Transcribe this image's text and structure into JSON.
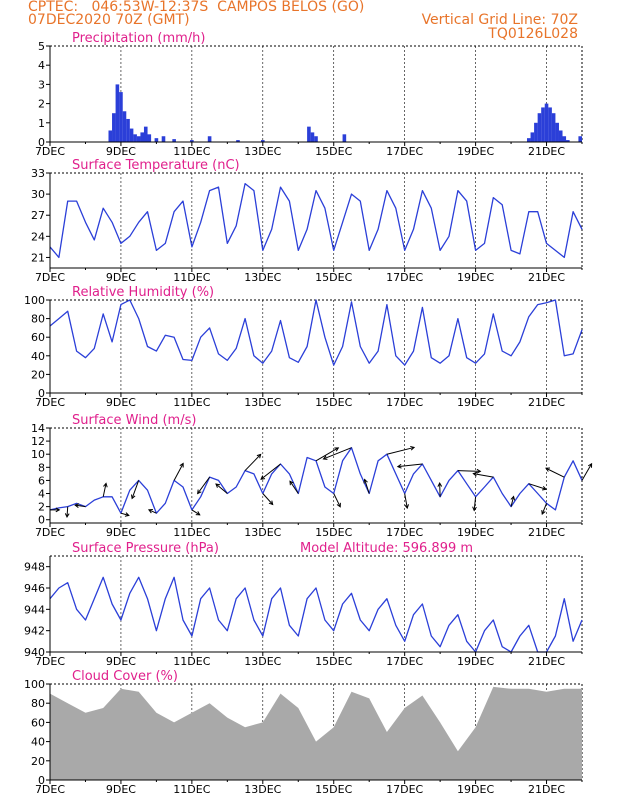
{
  "header": {
    "left_line1": "CPTEC:   046:53W-12:37S  CAMPOS BELOS (GO)",
    "left_line2": "07DEC2020 70Z (GMT)",
    "right_line1": "Vertical Grid Line: 70Z",
    "right_line2": "TQ0126L028"
  },
  "colors": {
    "header": "#e8742a",
    "title": "#e0208c",
    "series": "#2b3fd8",
    "cloud": "#a9a9a9"
  },
  "chart_data": [
    {
      "type": "bar",
      "title": "Precipitation (mm/h)",
      "x_tick_labels": [
        "7DEC",
        "9DEC",
        "11DEC",
        "13DEC",
        "15DEC",
        "17DEC",
        "19DEC",
        "21DEC"
      ],
      "y_ticks": [
        "0",
        "1",
        "2",
        "3",
        "4",
        "5"
      ],
      "ylim": [
        0,
        5
      ],
      "x": [
        1.7,
        1.8,
        1.9,
        2.0,
        2.1,
        2.2,
        2.3,
        2.4,
        2.5,
        2.6,
        2.7,
        2.8,
        3.0,
        3.2,
        3.5,
        4.0,
        4.5,
        5.3,
        6.0,
        7.3,
        7.4,
        7.5,
        8.3,
        13.5,
        13.6,
        13.7,
        13.8,
        13.9,
        14.0,
        14.1,
        14.2,
        14.3,
        14.4,
        14.5,
        14.6,
        14.95
      ],
      "values": [
        0.6,
        1.5,
        3.0,
        2.6,
        1.6,
        1.2,
        0.7,
        0.4,
        0.3,
        0.5,
        0.8,
        0.4,
        0.2,
        0.3,
        0.15,
        0.1,
        0.3,
        0.1,
        0.1,
        0.8,
        0.5,
        0.3,
        0.4,
        0.2,
        0.5,
        1.0,
        1.5,
        1.8,
        2.0,
        1.8,
        1.5,
        1.0,
        0.6,
        0.3,
        0.1,
        0.3
      ]
    },
    {
      "type": "line",
      "title": "Surface Temperature (nC)",
      "x_tick_labels": [
        "7DEC",
        "9DEC",
        "11DEC",
        "13DEC",
        "15DEC",
        "17DEC",
        "19DEC",
        "21DEC"
      ],
      "y_ticks": [
        "21",
        "24",
        "27",
        "30",
        "33"
      ],
      "ylim": [
        19.5,
        33
      ],
      "x": [
        0,
        0.25,
        0.5,
        0.75,
        1,
        1.25,
        1.5,
        1.75,
        2,
        2.25,
        2.5,
        2.75,
        3,
        3.25,
        3.5,
        3.75,
        4,
        4.25,
        4.5,
        4.75,
        5,
        5.25,
        5.5,
        5.75,
        6,
        6.25,
        6.5,
        6.75,
        7,
        7.25,
        7.5,
        7.75,
        8,
        8.25,
        8.5,
        8.75,
        9,
        9.25,
        9.5,
        9.75,
        10,
        10.25,
        10.5,
        10.75,
        11,
        11.25,
        11.5,
        11.75,
        12,
        12.25,
        12.5,
        12.75,
        13,
        13.25,
        13.5,
        13.75,
        14,
        14.25,
        14.5,
        14.75,
        15
      ],
      "values": [
        22.5,
        21,
        29,
        29,
        26,
        23.5,
        28,
        26,
        23,
        24,
        26,
        27.5,
        22,
        23,
        27.5,
        29,
        22.5,
        26,
        30.5,
        31,
        23,
        25.5,
        31.5,
        30.5,
        22,
        25,
        31,
        29,
        22,
        25,
        30.5,
        28,
        22,
        26,
        30,
        29,
        22,
        25,
        30.5,
        28,
        22,
        25,
        30.5,
        28,
        22,
        24,
        30.5,
        29,
        22,
        23,
        29.5,
        28.5,
        22,
        21.5,
        27.5,
        27.5,
        23,
        22,
        21,
        27.5,
        25
      ]
    },
    {
      "type": "line",
      "title": "Relative Humidity (%)",
      "x_tick_labels": [
        "7DEC",
        "9DEC",
        "11DEC",
        "13DEC",
        "15DEC",
        "17DEC",
        "19DEC",
        "21DEC"
      ],
      "y_ticks": [
        "0",
        "20",
        "40",
        "60",
        "80",
        "100"
      ],
      "ylim": [
        0,
        100
      ],
      "x": [
        0,
        0.25,
        0.5,
        0.75,
        1,
        1.25,
        1.5,
        1.75,
        2,
        2.25,
        2.5,
        2.75,
        3,
        3.25,
        3.5,
        3.75,
        4,
        4.25,
        4.5,
        4.75,
        5,
        5.25,
        5.5,
        5.75,
        6,
        6.25,
        6.5,
        6.75,
        7,
        7.25,
        7.5,
        7.75,
        8,
        8.25,
        8.5,
        8.75,
        9,
        9.25,
        9.5,
        9.75,
        10,
        10.25,
        10.5,
        10.75,
        11,
        11.25,
        11.5,
        11.75,
        12,
        12.25,
        12.5,
        12.75,
        13,
        13.25,
        13.5,
        13.75,
        14,
        14.25,
        14.5,
        14.75,
        15
      ],
      "values": [
        72,
        80,
        88,
        45,
        38,
        48,
        85,
        55,
        95,
        100,
        80,
        50,
        45,
        62,
        60,
        36,
        35,
        60,
        70,
        42,
        35,
        48,
        80,
        40,
        32,
        45,
        78,
        38,
        33,
        50,
        100,
        60,
        30,
        50,
        98,
        50,
        32,
        45,
        95,
        40,
        30,
        45,
        92,
        38,
        32,
        40,
        80,
        38,
        32,
        42,
        85,
        45,
        40,
        55,
        82,
        95,
        97,
        100,
        40,
        42,
        68
      ]
    },
    {
      "type": "line",
      "title": "Surface Wind (m/s)",
      "x_tick_labels": [
        "7DEC",
        "9DEC",
        "11DEC",
        "13DEC",
        "15DEC",
        "17DEC",
        "19DEC",
        "21DEC"
      ],
      "y_ticks": [
        "0",
        "2",
        "4",
        "6",
        "8",
        "10",
        "12",
        "14"
      ],
      "ylim": [
        -0.5,
        14
      ],
      "x": [
        0,
        0.25,
        0.5,
        0.75,
        1,
        1.25,
        1.5,
        1.75,
        2,
        2.25,
        2.5,
        2.75,
        3,
        3.25,
        3.5,
        3.75,
        4,
        4.25,
        4.5,
        4.75,
        5,
        5.25,
        5.5,
        5.75,
        6,
        6.25,
        6.5,
        6.75,
        7,
        7.25,
        7.5,
        7.75,
        8,
        8.25,
        8.5,
        8.75,
        9,
        9.25,
        9.5,
        9.75,
        10,
        10.25,
        10.5,
        10.75,
        11,
        11.25,
        11.5,
        11.75,
        12,
        12.25,
        12.5,
        12.75,
        13,
        13.25,
        13.5,
        13.75,
        14,
        14.25,
        14.5,
        14.75,
        15
      ],
      "values": [
        1.5,
        1.8,
        2,
        2.5,
        2,
        3,
        3.5,
        3.5,
        1,
        4.5,
        6,
        4.5,
        1,
        2.5,
        6,
        5,
        1.5,
        3.5,
        6.5,
        6,
        4,
        5,
        7.5,
        7,
        4,
        7,
        8.5,
        7,
        4,
        9.5,
        9,
        5,
        4,
        9,
        11,
        7,
        4,
        9,
        10,
        7,
        4,
        7,
        8.5,
        6,
        3.5,
        6,
        7.5,
        5.5,
        3.5,
        5,
        6.5,
        4,
        2,
        4,
        5.5,
        4,
        2.5,
        1.5,
        6.5,
        9,
        6
      ]
    },
    {
      "type": "line",
      "title": "Surface Pressure (hPa)",
      "annotation": "Model Altitude: 596.899 m",
      "x_tick_labels": [
        "7DEC",
        "9DEC",
        "11DEC",
        "13DEC",
        "15DEC",
        "17DEC",
        "19DEC",
        "21DEC"
      ],
      "y_ticks": [
        "940",
        "942",
        "944",
        "946",
        "948"
      ],
      "ylim": [
        940,
        949
      ],
      "x": [
        0,
        0.25,
        0.5,
        0.75,
        1,
        1.25,
        1.5,
        1.75,
        2,
        2.25,
        2.5,
        2.75,
        3,
        3.25,
        3.5,
        3.75,
        4,
        4.25,
        4.5,
        4.75,
        5,
        5.25,
        5.5,
        5.75,
        6,
        6.25,
        6.5,
        6.75,
        7,
        7.25,
        7.5,
        7.75,
        8,
        8.25,
        8.5,
        8.75,
        9,
        9.25,
        9.5,
        9.75,
        10,
        10.25,
        10.5,
        10.75,
        11,
        11.25,
        11.5,
        11.75,
        12,
        12.25,
        12.5,
        12.75,
        13,
        13.25,
        13.5,
        13.75,
        14,
        14.25,
        14.5,
        14.75,
        15
      ],
      "values": [
        945,
        946,
        946.5,
        944,
        943,
        945,
        947,
        944.5,
        943,
        945.5,
        947,
        945,
        942,
        945,
        947,
        943,
        941.5,
        945,
        946,
        943,
        942,
        945,
        946,
        943,
        941.5,
        945,
        946,
        942.5,
        941.5,
        945,
        946,
        943,
        942,
        944.5,
        945.5,
        943,
        942,
        944,
        945,
        942.5,
        941,
        943.5,
        944.5,
        941.5,
        940.5,
        942.5,
        943.5,
        941,
        940,
        942,
        943,
        940.5,
        940,
        941.5,
        942.5,
        940,
        940,
        941.5,
        945,
        941,
        943
      ]
    },
    {
      "type": "bar",
      "title": "Cloud Cover (%)",
      "x_tick_labels": [
        "7DEC",
        "9DEC",
        "11DEC",
        "13DEC",
        "15DEC",
        "17DEC",
        "19DEC",
        "21DEC"
      ],
      "y_ticks": [
        "0",
        "20",
        "40",
        "60",
        "80",
        "100"
      ],
      "ylim": [
        0,
        100
      ],
      "x": [
        0,
        0.5,
        1,
        1.5,
        2,
        2.5,
        3,
        3.5,
        4,
        4.5,
        5,
        5.5,
        6,
        6.5,
        7,
        7.5,
        8,
        8.5,
        9,
        9.5,
        10,
        10.5,
        11,
        11.5,
        12,
        12.5,
        13,
        13.5,
        14,
        14.5,
        15
      ],
      "values": [
        90,
        80,
        70,
        75,
        95,
        92,
        70,
        60,
        70,
        80,
        65,
        55,
        60,
        90,
        75,
        40,
        55,
        92,
        85,
        50,
        75,
        88,
        60,
        30,
        55,
        97,
        95,
        95,
        92,
        95,
        95
      ]
    }
  ]
}
